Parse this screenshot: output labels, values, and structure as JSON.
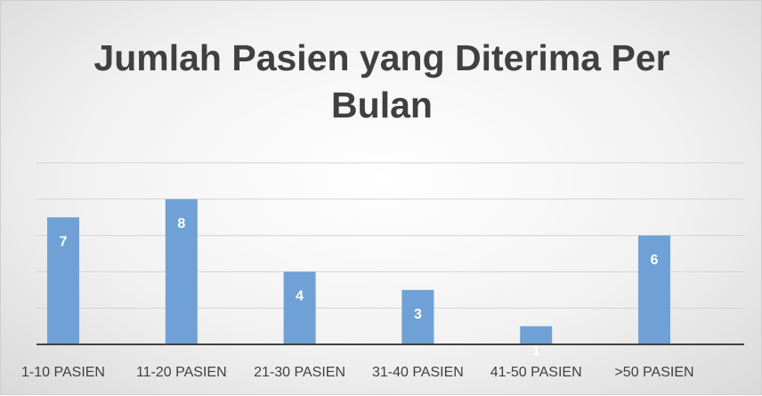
{
  "chart_data": {
    "type": "bar",
    "title": "Jumlah Pasien yang Diterima Per Bulan",
    "categories": [
      "1-10 PASIEN",
      "11-20 PASIEN",
      "21-30 PASIEN",
      "31-40 PASIEN",
      "41-50 PASIEN",
      ">50 PASIEN"
    ],
    "values": [
      7,
      8,
      4,
      3,
      1,
      6
    ],
    "color": "#6fa1d6",
    "ylim": [
      0,
      10
    ],
    "yticks": [
      0,
      2,
      4,
      6,
      8,
      10
    ],
    "grid": true
  }
}
